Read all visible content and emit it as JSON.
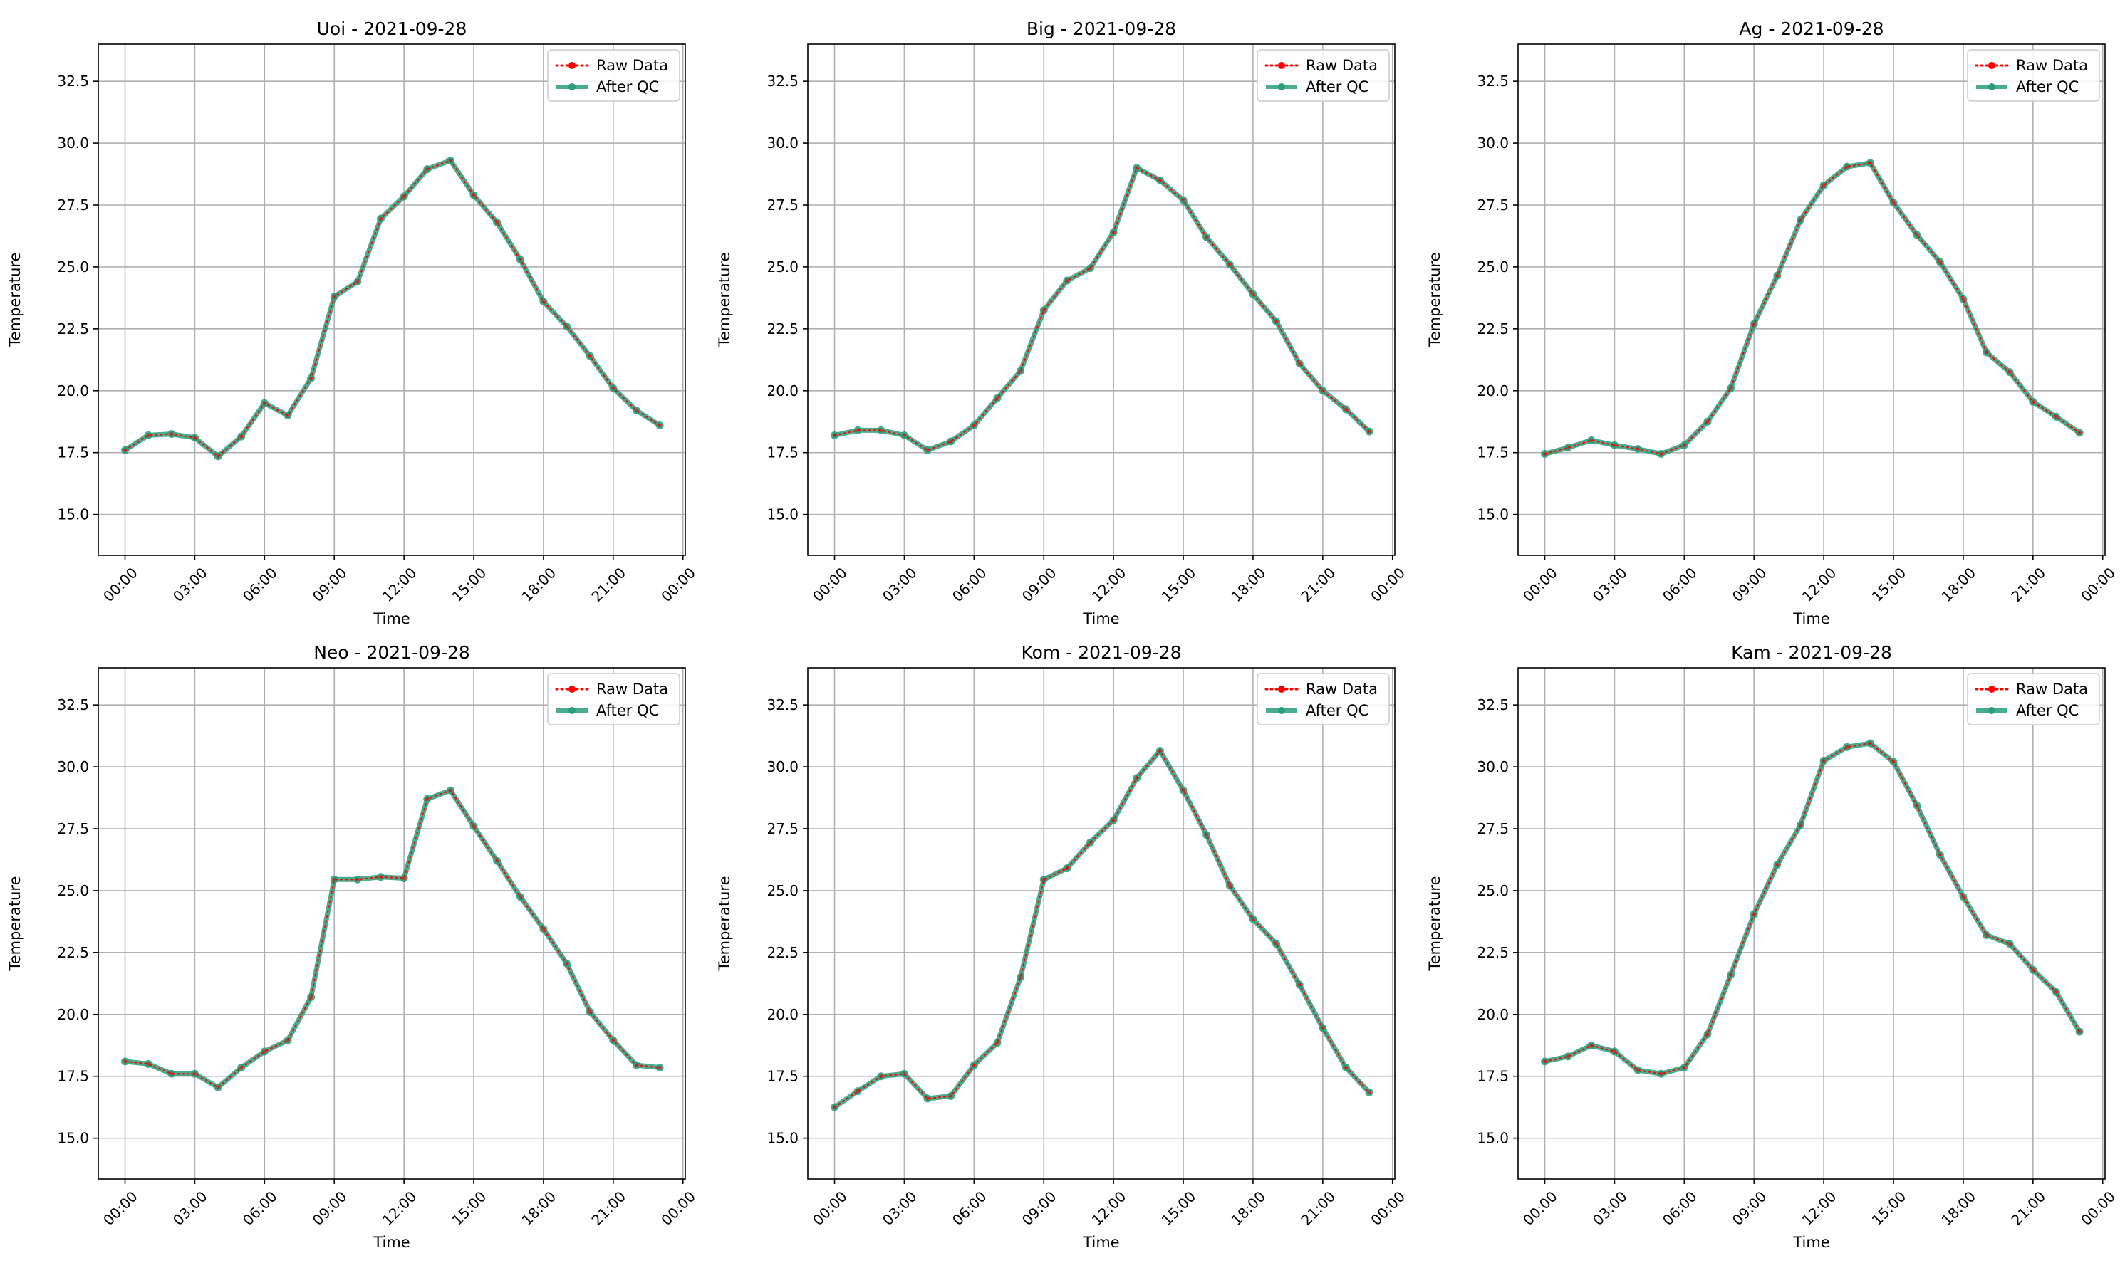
{
  "figure": {
    "ylim": [
      13.35,
      34.0
    ],
    "x_domain_hours": [
      -1.15,
      24.1
    ],
    "yticks": [
      15.0,
      17.5,
      20.0,
      22.5,
      25.0,
      27.5,
      30.0,
      32.5
    ],
    "ytick_labels": [
      "15.0",
      "17.5",
      "20.0",
      "22.5",
      "25.0",
      "27.5",
      "30.0",
      "32.5"
    ],
    "xticks_hours": [
      0,
      3,
      6,
      9,
      12,
      15,
      18,
      21,
      24
    ],
    "xtick_labels": [
      "00:00",
      "03:00",
      "06:00",
      "09:00",
      "12:00",
      "15:00",
      "18:00",
      "21:00",
      "00:00"
    ],
    "grid": true,
    "legend_placement": "upper right",
    "colors": {
      "raw": "#ff0000",
      "qc": "#2a9d7a"
    }
  },
  "chart_data": [
    {
      "type": "line",
      "title": "Uoi - 2021-09-28",
      "xlabel": "Time",
      "ylabel": "Temperature",
      "x": [
        "00:00",
        "01:00",
        "02:00",
        "03:00",
        "04:00",
        "05:00",
        "06:00",
        "07:00",
        "08:00",
        "09:00",
        "10:00",
        "11:00",
        "12:00",
        "13:00",
        "14:00",
        "15:00",
        "16:00",
        "17:00",
        "18:00",
        "19:00",
        "20:00",
        "21:00",
        "22:00",
        "23:00"
      ],
      "series": [
        {
          "name": "Raw Data",
          "values": [
            17.6,
            18.2,
            18.25,
            18.1,
            17.35,
            18.15,
            19.5,
            19.0,
            20.5,
            23.8,
            24.4,
            26.95,
            27.85,
            28.95,
            29.3,
            27.9,
            26.8,
            25.3,
            23.6,
            22.6,
            21.4,
            20.1,
            19.2,
            18.6
          ]
        },
        {
          "name": "After QC",
          "values": [
            17.6,
            18.2,
            18.25,
            18.1,
            17.35,
            18.15,
            19.5,
            19.0,
            20.5,
            23.8,
            24.4,
            26.95,
            27.85,
            28.95,
            29.3,
            27.9,
            26.8,
            25.3,
            23.6,
            22.6,
            21.4,
            20.1,
            19.2,
            18.6
          ]
        }
      ]
    },
    {
      "type": "line",
      "title": "Big - 2021-09-28",
      "xlabel": "Time",
      "ylabel": "Temperature",
      "x": [
        "00:00",
        "01:00",
        "02:00",
        "03:00",
        "04:00",
        "05:00",
        "06:00",
        "07:00",
        "08:00",
        "09:00",
        "10:00",
        "11:00",
        "12:00",
        "13:00",
        "14:00",
        "15:00",
        "16:00",
        "17:00",
        "18:00",
        "19:00",
        "20:00",
        "21:00",
        "22:00",
        "23:00"
      ],
      "series": [
        {
          "name": "Raw Data",
          "values": [
            18.2,
            18.4,
            18.4,
            18.2,
            17.6,
            17.95,
            18.6,
            19.7,
            20.8,
            23.25,
            24.45,
            24.95,
            26.4,
            29.0,
            28.5,
            27.7,
            26.2,
            25.1,
            23.9,
            22.8,
            21.1,
            20.0,
            19.25,
            18.35
          ]
        },
        {
          "name": "After QC",
          "values": [
            18.2,
            18.4,
            18.4,
            18.2,
            17.6,
            17.95,
            18.6,
            19.7,
            20.8,
            23.25,
            24.45,
            24.95,
            26.4,
            29.0,
            28.5,
            27.7,
            26.2,
            25.1,
            23.9,
            22.8,
            21.1,
            20.0,
            19.25,
            18.35
          ]
        }
      ]
    },
    {
      "type": "line",
      "title": "Ag - 2021-09-28",
      "xlabel": "Time",
      "ylabel": "Temperature",
      "x": [
        "00:00",
        "01:00",
        "02:00",
        "03:00",
        "04:00",
        "05:00",
        "06:00",
        "07:00",
        "08:00",
        "09:00",
        "10:00",
        "11:00",
        "12:00",
        "13:00",
        "14:00",
        "15:00",
        "16:00",
        "17:00",
        "18:00",
        "19:00",
        "20:00",
        "21:00",
        "22:00",
        "23:00"
      ],
      "series": [
        {
          "name": "Raw Data",
          "values": [
            17.45,
            17.7,
            18.0,
            17.8,
            17.65,
            17.45,
            17.8,
            18.75,
            20.1,
            22.7,
            24.65,
            26.9,
            28.3,
            29.05,
            29.2,
            27.6,
            26.3,
            25.2,
            23.7,
            21.55,
            20.75,
            19.55,
            18.95,
            18.3
          ]
        },
        {
          "name": "After QC",
          "values": [
            17.45,
            17.7,
            18.0,
            17.8,
            17.65,
            17.45,
            17.8,
            18.75,
            20.1,
            22.7,
            24.65,
            26.9,
            28.3,
            29.05,
            29.2,
            27.6,
            26.3,
            25.2,
            23.7,
            21.55,
            20.75,
            19.55,
            18.95,
            18.3
          ]
        }
      ]
    },
    {
      "type": "line",
      "title": "Neo - 2021-09-28",
      "xlabel": "Time",
      "ylabel": "Temperature",
      "x": [
        "00:00",
        "01:00",
        "02:00",
        "03:00",
        "04:00",
        "05:00",
        "06:00",
        "07:00",
        "08:00",
        "09:00",
        "10:00",
        "11:00",
        "12:00",
        "13:00",
        "14:00",
        "15:00",
        "16:00",
        "17:00",
        "18:00",
        "19:00",
        "20:00",
        "21:00",
        "22:00",
        "23:00"
      ],
      "series": [
        {
          "name": "Raw Data",
          "values": [
            18.1,
            18.0,
            17.6,
            17.6,
            17.05,
            17.85,
            18.5,
            18.95,
            20.7,
            25.45,
            25.45,
            25.55,
            25.5,
            28.7,
            29.05,
            27.6,
            26.2,
            24.75,
            23.45,
            22.05,
            20.1,
            18.95,
            17.95,
            17.85
          ]
        },
        {
          "name": "After QC",
          "values": [
            18.1,
            18.0,
            17.6,
            17.6,
            17.05,
            17.85,
            18.5,
            18.95,
            20.7,
            25.45,
            25.45,
            25.55,
            25.5,
            28.7,
            29.05,
            27.6,
            26.2,
            24.75,
            23.45,
            22.05,
            20.1,
            18.95,
            17.95,
            17.85
          ]
        }
      ]
    },
    {
      "type": "line",
      "title": "Kom - 2021-09-28",
      "xlabel": "Time",
      "ylabel": "Temperature",
      "x": [
        "00:00",
        "01:00",
        "02:00",
        "03:00",
        "04:00",
        "05:00",
        "06:00",
        "07:00",
        "08:00",
        "09:00",
        "10:00",
        "11:00",
        "12:00",
        "13:00",
        "14:00",
        "15:00",
        "16:00",
        "17:00",
        "18:00",
        "19:00",
        "20:00",
        "21:00",
        "22:00",
        "23:00"
      ],
      "series": [
        {
          "name": "Raw Data",
          "values": [
            16.25,
            16.9,
            17.5,
            17.6,
            16.6,
            16.7,
            17.95,
            18.85,
            21.5,
            25.45,
            25.9,
            26.95,
            27.85,
            29.55,
            30.65,
            29.05,
            27.25,
            25.2,
            23.85,
            22.85,
            21.2,
            19.45,
            17.85,
            16.85
          ]
        },
        {
          "name": "After QC",
          "values": [
            16.25,
            16.9,
            17.5,
            17.6,
            16.6,
            16.7,
            17.95,
            18.85,
            21.5,
            25.45,
            25.9,
            26.95,
            27.85,
            29.55,
            30.65,
            29.05,
            27.25,
            25.2,
            23.85,
            22.85,
            21.2,
            19.45,
            17.85,
            16.85
          ]
        }
      ]
    },
    {
      "type": "line",
      "title": "Kam - 2021-09-28",
      "xlabel": "Time",
      "ylabel": "Temperature",
      "x": [
        "00:00",
        "01:00",
        "02:00",
        "03:00",
        "04:00",
        "05:00",
        "06:00",
        "07:00",
        "08:00",
        "09:00",
        "10:00",
        "11:00",
        "12:00",
        "13:00",
        "14:00",
        "15:00",
        "16:00",
        "17:00",
        "18:00",
        "19:00",
        "20:00",
        "21:00",
        "22:00",
        "23:00"
      ],
      "series": [
        {
          "name": "Raw Data",
          "values": [
            18.1,
            18.3,
            18.75,
            18.5,
            17.75,
            17.6,
            17.85,
            19.2,
            21.6,
            24.05,
            26.05,
            27.65,
            30.25,
            30.8,
            30.95,
            30.2,
            28.45,
            26.45,
            24.75,
            23.2,
            22.85,
            21.8,
            20.9,
            19.3
          ]
        },
        {
          "name": "After QC",
          "values": [
            18.1,
            18.3,
            18.75,
            18.5,
            17.75,
            17.6,
            17.85,
            19.2,
            21.6,
            24.05,
            26.05,
            27.65,
            30.25,
            30.8,
            30.95,
            30.2,
            28.45,
            26.45,
            24.75,
            23.2,
            22.85,
            21.8,
            20.9,
            19.3
          ]
        }
      ]
    }
  ]
}
